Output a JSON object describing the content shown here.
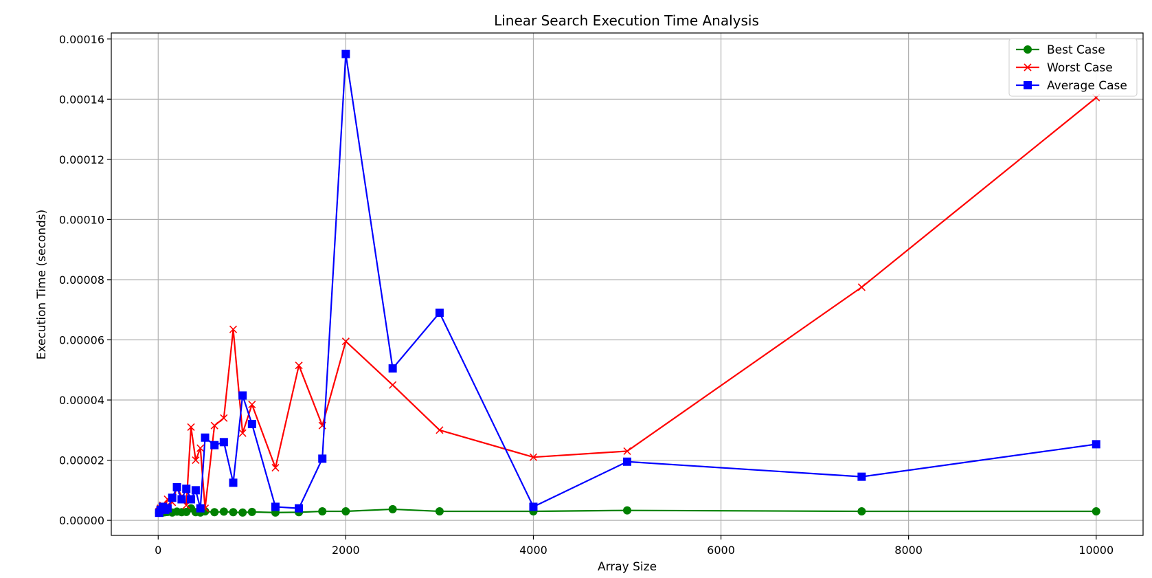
{
  "chart_data": {
    "type": "line",
    "title": "Linear Search Execution Time Analysis",
    "xlabel": "Array Size",
    "ylabel": "Execution Time (seconds)",
    "xlim": [
      -500,
      10500
    ],
    "ylim": [
      -5e-06,
      0.000162
    ],
    "xticks": [
      0,
      2000,
      4000,
      6000,
      8000,
      10000
    ],
    "yticks": [
      0.0,
      2e-05,
      4e-05,
      6e-05,
      8e-05,
      0.0001,
      0.00012,
      0.00014,
      0.00016
    ],
    "xtick_labels": [
      "0",
      "2000",
      "4000",
      "6000",
      "8000",
      "10000"
    ],
    "ytick_labels": [
      "0.00000",
      "0.00002",
      "0.00004",
      "0.00006",
      "0.00008",
      "0.00010",
      "0.00012",
      "0.00014",
      "0.00016"
    ],
    "grid": true,
    "legend_position": "top-right",
    "x": [
      10,
      25,
      50,
      75,
      100,
      150,
      200,
      250,
      300,
      350,
      400,
      450,
      500,
      600,
      700,
      800,
      900,
      1000,
      1250,
      1500,
      1750,
      2000,
      2500,
      3000,
      4000,
      5000,
      7500,
      10000
    ],
    "series": [
      {
        "name": "Best Case",
        "color": "#008000",
        "marker": "circle",
        "values": [
          2.5e-06,
          2.8e-06,
          2.6e-06,
          2.7e-06,
          2.8e-06,
          2.6e-06,
          2.9e-06,
          2.7e-06,
          2.8e-06,
          4e-06,
          2.7e-06,
          2.6e-06,
          3e-06,
          2.7e-06,
          2.9e-06,
          2.7e-06,
          2.6e-06,
          2.8e-06,
          2.6e-06,
          2.7e-06,
          3e-06,
          3e-06,
          3.7e-06,
          3e-06,
          3e-06,
          3.3e-06,
          3e-06,
          3e-06
        ]
      },
      {
        "name": "Worst Case",
        "color": "#ff0000",
        "marker": "x",
        "values": [
          3e-06,
          4e-06,
          5e-06,
          4.5e-06,
          7e-06,
          6e-06,
          1.1e-05,
          8e-06,
          5e-06,
          3.1e-05,
          2e-05,
          2.4e-05,
          4e-06,
          3.15e-05,
          3.4e-05,
          6.35e-05,
          2.9e-05,
          3.85e-05,
          1.75e-05,
          5.15e-05,
          3.15e-05,
          5.95e-05,
          4.5e-05,
          3e-05,
          2.1e-05,
          2.3e-05,
          7.75e-05,
          0.0001405
        ]
      },
      {
        "name": "Average Case",
        "color": "#0000ff",
        "marker": "square",
        "values": [
          2.5e-06,
          3.5e-06,
          4.5e-06,
          3.5e-06,
          4e-06,
          7.5e-06,
          1.1e-05,
          7e-06,
          1.05e-05,
          7e-06,
          1e-05,
          4e-06,
          2.75e-05,
          2.5e-05,
          2.6e-05,
          1.25e-05,
          4.15e-05,
          3.2e-05,
          4.5e-06,
          4e-06,
          2.05e-05,
          0.000155,
          5.05e-05,
          6.9e-05,
          4.5e-06,
          1.95e-05,
          1.45e-05,
          2.53e-05
        ]
      }
    ]
  }
}
